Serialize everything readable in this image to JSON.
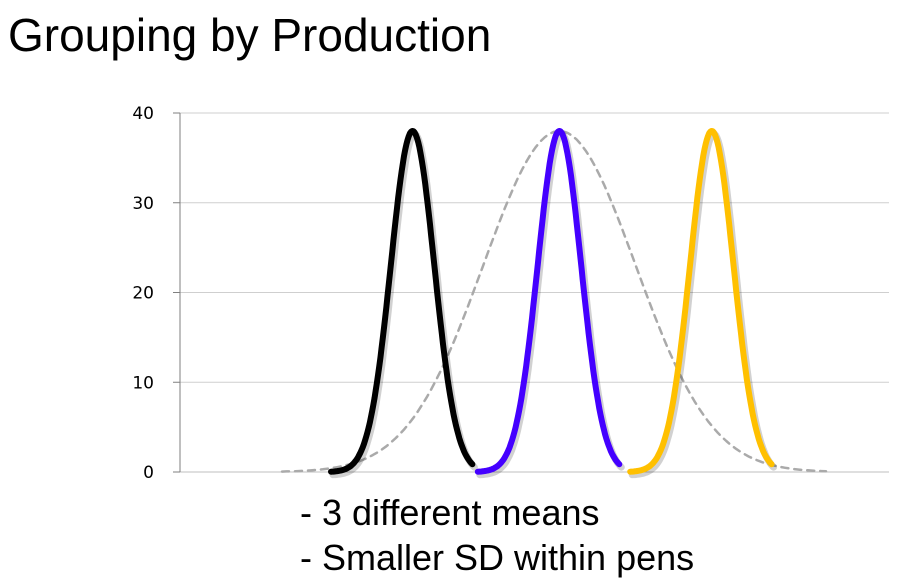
{
  "title": "Grouping by Production",
  "bullets": [
    "- 3 different means",
    "- Smaller SD within pens"
  ],
  "chart_data": {
    "type": "line",
    "title": "",
    "xlabel": "",
    "ylabel": "",
    "ylim": [
      0,
      40
    ],
    "yticks": [
      0,
      10,
      20,
      30,
      40
    ],
    "grid": true,
    "legend": "none",
    "series": [
      {
        "color": "#000000",
        "style": "solid",
        "mean": 0.24,
        "sd": 0.04,
        "peak": 38,
        "x_range": [
          0.09,
          0.35
        ]
      },
      {
        "color": "#4400ff",
        "style": "solid",
        "mean": 0.51,
        "sd": 0.04,
        "peak": 38,
        "x_range": [
          0.36,
          0.62
        ]
      },
      {
        "color": "#ffc000",
        "style": "solid",
        "mean": 0.79,
        "sd": 0.04,
        "peak": 38,
        "x_range": [
          0.64,
          0.9
        ]
      },
      {
        "color": "#aaaaaa",
        "style": "dashed",
        "mean": 0.51,
        "sd": 0.14,
        "peak": 38,
        "x_range": [
          0.0,
          1.0
        ]
      }
    ]
  }
}
